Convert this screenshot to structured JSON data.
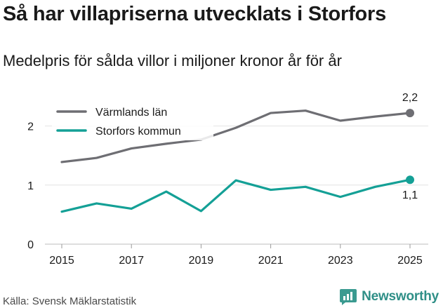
{
  "chart_data": {
    "type": "line",
    "title": "Så har villapriserna utvecklats i Storfors",
    "subtitle": "Medelpris för sålda villor i miljoner kronor år för år",
    "x": [
      2015,
      2016,
      2017,
      2018,
      2019,
      2020,
      2021,
      2022,
      2023,
      2024,
      2025
    ],
    "x_ticks": [
      "2015",
      "2017",
      "2019",
      "2021",
      "2023",
      "2025"
    ],
    "y_ticks": [
      "0",
      "1",
      "2"
    ],
    "ylim": [
      0,
      2.5
    ],
    "series": [
      {
        "name": "Värmlands län",
        "color": "#6e6e73",
        "values": [
          1.39,
          1.46,
          1.62,
          1.7,
          1.77,
          1.97,
          2.22,
          2.26,
          2.09,
          2.16,
          2.22
        ],
        "end_label": "2,2"
      },
      {
        "name": "Storfors kommun",
        "color": "#14a096",
        "values": [
          0.55,
          0.69,
          0.6,
          0.89,
          0.56,
          1.08,
          0.92,
          0.97,
          0.8,
          0.97,
          1.09
        ],
        "end_label": "1,1"
      }
    ],
    "grid": true,
    "legend": "top-left"
  },
  "footer": {
    "source": "Källa: Svensk Mäklarstatistik",
    "brand": "Newsworthy"
  }
}
